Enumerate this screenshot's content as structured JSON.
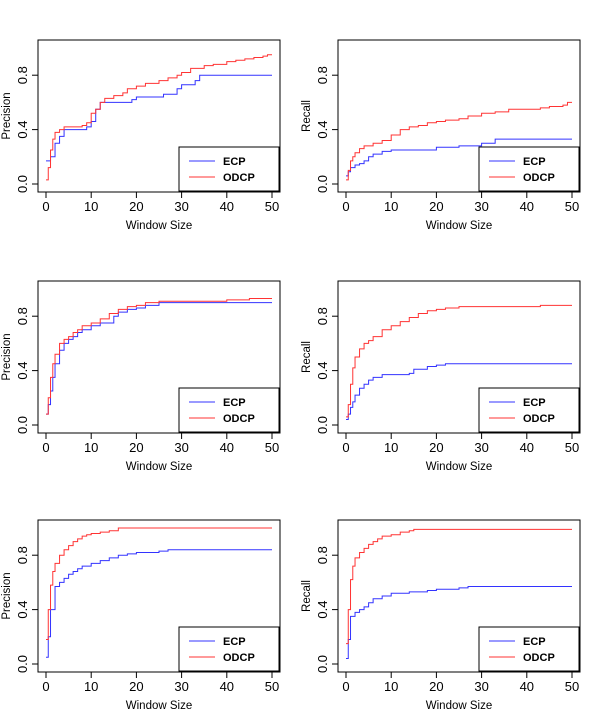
{
  "figure": {
    "rows": 3,
    "cols": 2
  },
  "colors": {
    "ecp": "#3333ff",
    "odcp": "#ff3333",
    "axis": "#000000"
  },
  "chart_data": [
    {
      "type": "line",
      "row": 0,
      "col": 0,
      "xlabel": "Window Size",
      "ylabel": "Precision",
      "xlim": [
        0,
        50
      ],
      "ylim": [
        0,
        1
      ],
      "xticks": [
        0,
        10,
        20,
        30,
        40,
        50
      ],
      "yticks": [
        0.0,
        0.4,
        0.8
      ],
      "legend": {
        "position": "bottom-right",
        "entries": [
          "ECP",
          "ODCP"
        ]
      },
      "series": [
        {
          "name": "ECP",
          "color": "#3333ff",
          "step": true,
          "x": [
            0,
            1,
            2,
            3,
            4,
            6,
            9,
            10,
            11,
            12,
            14,
            19,
            20,
            25,
            26,
            29,
            30,
            33,
            34,
            40,
            50
          ],
          "y": [
            0.17,
            0.2,
            0.3,
            0.35,
            0.4,
            0.4,
            0.42,
            0.46,
            0.55,
            0.6,
            0.6,
            0.62,
            0.64,
            0.64,
            0.66,
            0.7,
            0.73,
            0.76,
            0.8,
            0.8,
            0.8
          ]
        },
        {
          "name": "ODCP",
          "color": "#ff3333",
          "step": true,
          "x": [
            0,
            0.5,
            1,
            1.5,
            2,
            3,
            4,
            6,
            8,
            9,
            10,
            11,
            12,
            13,
            15,
            17,
            18,
            20,
            22,
            25,
            27,
            29,
            30,
            32,
            35,
            37,
            40,
            42,
            44,
            46,
            48,
            49,
            50
          ],
          "y": [
            0.03,
            0.12,
            0.25,
            0.33,
            0.38,
            0.4,
            0.42,
            0.42,
            0.43,
            0.45,
            0.52,
            0.55,
            0.6,
            0.63,
            0.65,
            0.67,
            0.7,
            0.72,
            0.74,
            0.76,
            0.78,
            0.8,
            0.82,
            0.85,
            0.87,
            0.88,
            0.9,
            0.91,
            0.92,
            0.93,
            0.94,
            0.95,
            0.95
          ]
        }
      ]
    },
    {
      "type": "line",
      "row": 0,
      "col": 1,
      "xlabel": "Window Size",
      "ylabel": "Recall",
      "xlim": [
        0,
        50
      ],
      "ylim": [
        0,
        1
      ],
      "xticks": [
        0,
        10,
        20,
        30,
        40,
        50
      ],
      "yticks": [
        0.0,
        0.4,
        0.8
      ],
      "legend": {
        "position": "bottom-right",
        "entries": [
          "ECP",
          "ODCP"
        ]
      },
      "series": [
        {
          "name": "ECP",
          "color": "#3333ff",
          "step": true,
          "x": [
            0,
            0.5,
            1,
            2,
            3,
            4,
            5,
            6,
            8,
            10,
            15,
            20,
            25,
            30,
            33,
            50
          ],
          "y": [
            0.06,
            0.09,
            0.12,
            0.14,
            0.15,
            0.17,
            0.2,
            0.22,
            0.24,
            0.25,
            0.25,
            0.27,
            0.28,
            0.3,
            0.33,
            0.33
          ]
        },
        {
          "name": "ODCP",
          "color": "#ff3333",
          "step": true,
          "x": [
            0,
            0.5,
            1,
            1.5,
            2,
            3,
            4,
            6,
            8,
            10,
            12,
            14,
            16,
            18,
            20,
            22,
            25,
            27,
            30,
            33,
            36,
            40,
            43,
            45,
            48,
            49,
            50
          ],
          "y": [
            0.03,
            0.1,
            0.17,
            0.2,
            0.23,
            0.26,
            0.28,
            0.3,
            0.32,
            0.36,
            0.4,
            0.42,
            0.43,
            0.45,
            0.46,
            0.47,
            0.48,
            0.5,
            0.52,
            0.53,
            0.55,
            0.55,
            0.56,
            0.57,
            0.58,
            0.6,
            0.6
          ]
        }
      ]
    },
    {
      "type": "line",
      "row": 1,
      "col": 0,
      "xlabel": "Window Size",
      "ylabel": "Precision",
      "xlim": [
        0,
        50
      ],
      "ylim": [
        0,
        1
      ],
      "xticks": [
        0,
        10,
        20,
        30,
        40,
        50
      ],
      "yticks": [
        0.0,
        0.4,
        0.8
      ],
      "legend": {
        "position": "bottom-right",
        "entries": [
          "ECP",
          "ODCP"
        ]
      },
      "series": [
        {
          "name": "ECP",
          "color": "#3333ff",
          "step": true,
          "x": [
            0,
            0.5,
            1,
            1.5,
            2,
            3,
            4,
            5,
            6,
            7,
            8,
            10,
            12,
            15,
            16,
            18,
            20,
            22,
            25,
            30,
            40,
            50
          ],
          "y": [
            0.08,
            0.15,
            0.25,
            0.35,
            0.45,
            0.55,
            0.6,
            0.63,
            0.65,
            0.68,
            0.7,
            0.73,
            0.75,
            0.8,
            0.83,
            0.85,
            0.86,
            0.88,
            0.9,
            0.9,
            0.9,
            0.9
          ]
        },
        {
          "name": "ODCP",
          "color": "#ff3333",
          "step": true,
          "x": [
            0,
            0.5,
            1,
            1.5,
            2,
            3,
            4,
            5,
            6,
            7,
            8,
            10,
            12,
            14,
            16,
            18,
            20,
            22,
            25,
            30,
            40,
            45,
            50
          ],
          "y": [
            0.08,
            0.2,
            0.35,
            0.45,
            0.52,
            0.6,
            0.63,
            0.65,
            0.68,
            0.7,
            0.73,
            0.75,
            0.78,
            0.82,
            0.85,
            0.87,
            0.88,
            0.9,
            0.91,
            0.91,
            0.92,
            0.93,
            0.93
          ]
        }
      ]
    },
    {
      "type": "line",
      "row": 1,
      "col": 1,
      "xlabel": "Window Size",
      "ylabel": "Recall",
      "xlim": [
        0,
        50
      ],
      "ylim": [
        0,
        1
      ],
      "xticks": [
        0,
        10,
        20,
        30,
        40,
        50
      ],
      "yticks": [
        0.0,
        0.4,
        0.8
      ],
      "legend": {
        "position": "bottom-right",
        "entries": [
          "ECP",
          "ODCP"
        ]
      },
      "series": [
        {
          "name": "ECP",
          "color": "#3333ff",
          "step": true,
          "x": [
            0,
            0.5,
            1,
            1.5,
            2,
            3,
            4,
            5,
            6,
            8,
            10,
            14,
            15,
            18,
            20,
            22,
            25,
            50
          ],
          "y": [
            0.04,
            0.08,
            0.13,
            0.17,
            0.22,
            0.27,
            0.3,
            0.33,
            0.35,
            0.37,
            0.37,
            0.38,
            0.41,
            0.43,
            0.44,
            0.45,
            0.45,
            0.45
          ]
        },
        {
          "name": "ODCP",
          "color": "#ff3333",
          "step": true,
          "x": [
            0,
            0.5,
            1,
            1.5,
            2,
            3,
            4,
            5,
            6,
            8,
            10,
            12,
            14,
            16,
            18,
            20,
            22,
            25,
            30,
            40,
            43,
            50
          ],
          "y": [
            0.06,
            0.15,
            0.3,
            0.42,
            0.5,
            0.56,
            0.6,
            0.62,
            0.65,
            0.7,
            0.73,
            0.76,
            0.79,
            0.82,
            0.84,
            0.85,
            0.86,
            0.87,
            0.87,
            0.87,
            0.88,
            0.88
          ]
        }
      ]
    },
    {
      "type": "line",
      "row": 2,
      "col": 0,
      "xlabel": "Window Size",
      "ylabel": "Precision",
      "xlim": [
        0,
        50
      ],
      "ylim": [
        0,
        1
      ],
      "xticks": [
        0,
        10,
        20,
        30,
        40,
        50
      ],
      "yticks": [
        0.0,
        0.4,
        0.8
      ],
      "legend": {
        "position": "bottom-right",
        "entries": [
          "ECP",
          "ODCP"
        ]
      },
      "series": [
        {
          "name": "ECP",
          "color": "#3333ff",
          "step": true,
          "x": [
            0,
            0.5,
            1,
            2,
            3,
            4,
            5,
            6,
            7,
            8,
            10,
            12,
            14,
            16,
            18,
            20,
            25,
            27,
            50
          ],
          "y": [
            0.05,
            0.2,
            0.4,
            0.57,
            0.6,
            0.63,
            0.66,
            0.68,
            0.7,
            0.72,
            0.74,
            0.76,
            0.78,
            0.8,
            0.81,
            0.82,
            0.83,
            0.84,
            0.84
          ]
        },
        {
          "name": "ODCP",
          "color": "#ff3333",
          "step": true,
          "x": [
            0,
            0.5,
            1,
            1.5,
            2,
            3,
            4,
            5,
            6,
            7,
            8,
            9,
            10,
            12,
            14,
            16,
            50
          ],
          "y": [
            0.18,
            0.4,
            0.58,
            0.68,
            0.74,
            0.8,
            0.84,
            0.87,
            0.9,
            0.92,
            0.94,
            0.95,
            0.96,
            0.97,
            0.98,
            1.0,
            1.0
          ]
        }
      ]
    },
    {
      "type": "line",
      "row": 2,
      "col": 1,
      "xlabel": "Window Size",
      "ylabel": "Recall",
      "xlim": [
        0,
        50
      ],
      "ylim": [
        0,
        1
      ],
      "xticks": [
        0,
        10,
        20,
        30,
        40,
        50
      ],
      "yticks": [
        0.0,
        0.4,
        0.8
      ],
      "legend": {
        "position": "bottom-right",
        "entries": [
          "ECP",
          "ODCP"
        ]
      },
      "series": [
        {
          "name": "ECP",
          "color": "#3333ff",
          "step": true,
          "x": [
            0,
            0.5,
            1,
            2,
            3,
            4,
            5,
            6,
            8,
            10,
            14,
            18,
            20,
            25,
            27,
            50
          ],
          "y": [
            0.04,
            0.18,
            0.35,
            0.38,
            0.4,
            0.42,
            0.45,
            0.48,
            0.5,
            0.52,
            0.53,
            0.54,
            0.55,
            0.56,
            0.57,
            0.57
          ]
        },
        {
          "name": "ODCP",
          "color": "#ff3333",
          "step": true,
          "x": [
            0,
            0.5,
            1,
            1.5,
            2,
            3,
            4,
            5,
            6,
            7,
            8,
            10,
            12,
            14,
            15,
            50
          ],
          "y": [
            0.15,
            0.4,
            0.62,
            0.72,
            0.78,
            0.82,
            0.85,
            0.88,
            0.9,
            0.92,
            0.94,
            0.95,
            0.97,
            0.98,
            0.99,
            0.99
          ]
        }
      ]
    }
  ]
}
